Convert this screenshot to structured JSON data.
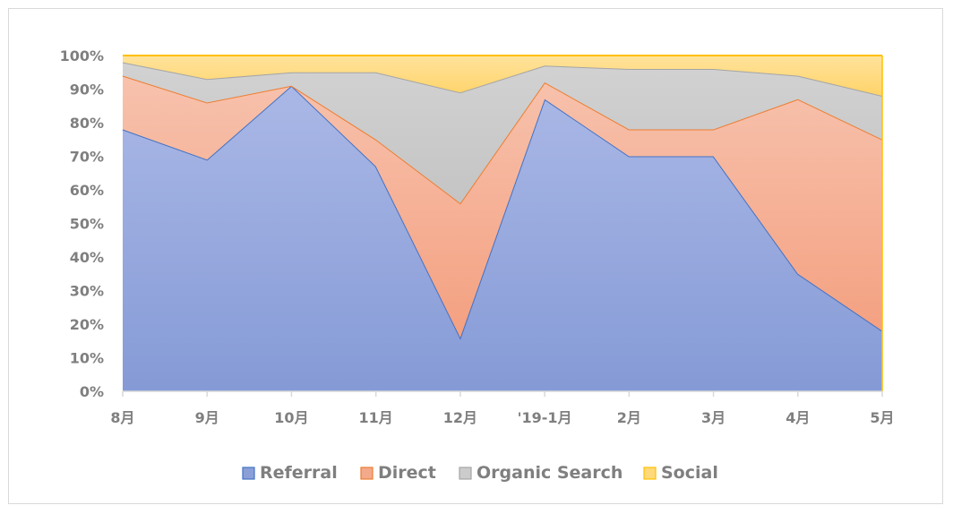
{
  "chart_data": {
    "type": "area",
    "stacked": "percent",
    "categories": [
      "8月",
      "9月",
      "10月",
      "11月",
      "12月",
      "'19-1月",
      "2月",
      "3月",
      "4月",
      "5月"
    ],
    "series": [
      {
        "name": "Referral",
        "color": "#8a9fd8",
        "line": "#4472c4",
        "values": [
          78,
          69,
          91,
          67,
          16,
          87,
          70,
          70,
          35,
          18
        ]
      },
      {
        "name": "Direct",
        "color": "#f4a98a",
        "line": "#ed7d31",
        "values": [
          16,
          17,
          0,
          8,
          40,
          5,
          8,
          8,
          52,
          57
        ]
      },
      {
        "name": "Organic Search",
        "color": "#cccccc",
        "line": "#a5a5a5",
        "values": [
          4,
          7,
          4,
          20,
          33,
          5,
          18,
          18,
          7,
          13
        ]
      },
      {
        "name": "Social",
        "color": "#ffd97a",
        "line": "#ffc000",
        "values": [
          2,
          7,
          5,
          5,
          11,
          3,
          4,
          4,
          6,
          12
        ]
      }
    ],
    "yticks": [
      "0%",
      "10%",
      "20%",
      "30%",
      "40%",
      "50%",
      "60%",
      "70%",
      "80%",
      "90%",
      "100%"
    ],
    "ylim": [
      0,
      100
    ],
    "grid": false,
    "legend_position": "bottom"
  }
}
